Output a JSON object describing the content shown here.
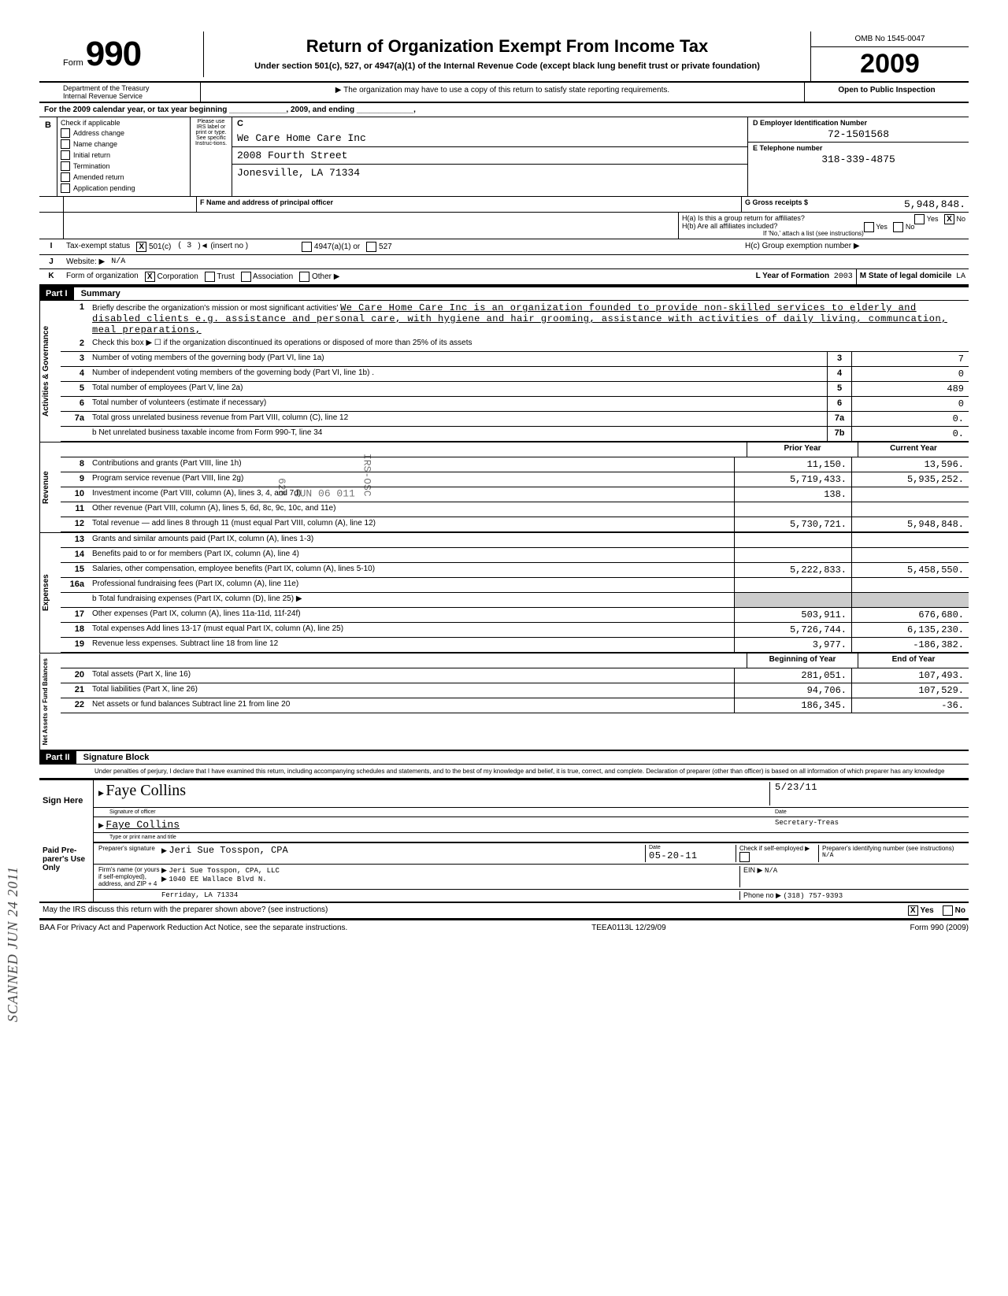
{
  "header": {
    "form_label": "Form",
    "form_number": "990",
    "main_title": "Return of Organization Exempt From Income Tax",
    "sub_title": "Under section 501(c), 527, or 4947(a)(1) of the Internal Revenue Code (except black lung benefit trust or private foundation)",
    "requirement_note": "▶ The organization may have to use a copy of this return to satisfy state reporting requirements.",
    "dept": "Department of the Treasury",
    "irs": "Internal Revenue Service",
    "omb": "OMB No 1545-0047",
    "year": "2009",
    "inspection": "Open to Public Inspection"
  },
  "calendar_row": "For the 2009 calendar year, or tax year beginning _____________, 2009, and ending _____________,",
  "section_b": {
    "label_b": "B",
    "check_if": "Check if applicable",
    "please": "Please use IRS label or print or type. See specific Instruc-tions.",
    "checks": [
      "Address change",
      "Name change",
      "Initial return",
      "Termination",
      "Amended return",
      "Application pending"
    ],
    "label_c": "C",
    "org_name": "We Care Home Care Inc",
    "addr1": "2008 Fourth Street",
    "addr2": "Jonesville, LA 71334",
    "label_d": "D  Employer Identification Number",
    "ein": "72-1501568",
    "label_e": "E  Telephone number",
    "phone": "318-339-4875",
    "label_f": "F  Name and address of principal officer",
    "label_g": "G  Gross receipts $",
    "gross": "5,948,848.",
    "h_a": "H(a) Is this a group return for affiliates?",
    "h_b": "H(b) Are all affiliates included?",
    "h_note": "If 'No,' attach a list (see instructions)",
    "h_c": "H(c) Group exemption number ▶",
    "yes": "Yes",
    "no": "No"
  },
  "row_i": {
    "l": "I",
    "txt": "Tax-exempt status",
    "c501": "501(c)",
    "three": "( 3",
    "insert": ")◄  (insert no )",
    "a4947": "4947(a)(1) or",
    "c527": "527"
  },
  "row_j": {
    "l": "J",
    "txt": "Website: ▶",
    "val": "N/A"
  },
  "row_k": {
    "l": "K",
    "txt": "Form of organization",
    "corp": "Corporation",
    "trust": "Trust",
    "assoc": "Association",
    "other": "Other ▶",
    "yr_l": "L Year of Formation",
    "yr": "2003",
    "st_l": "M State of legal domicile",
    "st": "LA"
  },
  "part1": {
    "hdr": "Part I",
    "title": "Summary"
  },
  "summary": {
    "q1_label": "Briefly describe the organization's mission or most significant activities'",
    "q1_text": "We Care Home Care Inc is an organization founded to provide non-skilled services to elderly and disabled clients e.g. assistance and personal care, with hygiene and hair grooming, assistance with activities of daily living, communcation, meal preparations,",
    "q2": "Check this box ▶  ☐  if the organization discontinued its operations or disposed of more than 25% of its assets",
    "lines_gov": [
      {
        "n": "3",
        "t": "Number of voting members of the governing body (Part VI, line 1a)",
        "b": "3",
        "v": "7"
      },
      {
        "n": "4",
        "t": "Number of independent voting members of the governing body (Part VI, line 1b) .",
        "b": "4",
        "v": "0"
      },
      {
        "n": "5",
        "t": "Total number of employees (Part V, line 2a)",
        "b": "5",
        "v": "489"
      },
      {
        "n": "6",
        "t": "Total number of volunteers (estimate if necessary)",
        "b": "6",
        "v": "0"
      },
      {
        "n": "7a",
        "t": "Total gross unrelated business revenue from Part VIII, column (C), line 12",
        "b": "7a",
        "v": "0."
      },
      {
        "n": "",
        "t": "b Net unrelated business taxable income from Form 990-T, line 34",
        "b": "7b",
        "v": "0."
      }
    ],
    "col_hdr_prior": "Prior Year",
    "col_hdr_curr": "Current Year",
    "revenue": [
      {
        "n": "8",
        "t": "Contributions and grants (Part VIII, line 1h)",
        "p": "11,150.",
        "c": "13,596."
      },
      {
        "n": "9",
        "t": "Program service revenue (Part VIII, line 2g)",
        "p": "5,719,433.",
        "c": "5,935,252."
      },
      {
        "n": "10",
        "t": "Investment income (Part VIII, column (A), lines 3, 4, and 7d)",
        "p": "138.",
        "c": ""
      },
      {
        "n": "11",
        "t": "Other revenue (Part VIII, column (A), lines 5, 6d, 8c, 9c, 10c, and 11e)",
        "p": "",
        "c": ""
      },
      {
        "n": "12",
        "t": "Total revenue — add lines 8 through 11 (must equal Part VIII, column (A), line 12)",
        "p": "5,730,721.",
        "c": "5,948,848."
      }
    ],
    "expenses": [
      {
        "n": "13",
        "t": "Grants and similar amounts paid (Part IX, column (A), lines 1-3)",
        "p": "",
        "c": ""
      },
      {
        "n": "14",
        "t": "Benefits paid to or for members (Part IX, column (A), line 4)",
        "p": "",
        "c": ""
      },
      {
        "n": "15",
        "t": "Salaries, other compensation, employee benefits (Part IX, column (A), lines 5-10)",
        "p": "5,222,833.",
        "c": "5,458,550."
      },
      {
        "n": "16a",
        "t": "Professional fundraising fees (Part IX, column (A), line 11e)",
        "p": "",
        "c": ""
      },
      {
        "n": "",
        "t": "b Total fundraising expenses (Part IX, column (D), line 25) ▶",
        "p": "",
        "c": "",
        "shade": true
      },
      {
        "n": "17",
        "t": "Other expenses (Part IX, column (A), lines 11a-11d, 11f-24f)",
        "p": "503,911.",
        "c": "676,680."
      },
      {
        "n": "18",
        "t": "Total expenses  Add lines 13-17 (must equal Part IX, column (A), line 25)",
        "p": "5,726,744.",
        "c": "6,135,230."
      },
      {
        "n": "19",
        "t": "Revenue less expenses. Subtract line 18 from line 12",
        "p": "3,977.",
        "c": "-186,382."
      }
    ],
    "col_hdr_begin": "Beginning of Year",
    "col_hdr_end": "End of Year",
    "netassets": [
      {
        "n": "20",
        "t": "Total assets (Part X, line 16)",
        "p": "281,051.",
        "c": "107,493."
      },
      {
        "n": "21",
        "t": "Total liabilities (Part X, line 26)",
        "p": "94,706.",
        "c": "107,529."
      },
      {
        "n": "22",
        "t": "Net assets or fund balances  Subtract line 21 from line 20",
        "p": "186,345.",
        "c": "-36."
      }
    ],
    "side_gov": "Activities & Governance",
    "side_rev": "Revenue",
    "side_exp": "Expenses",
    "side_net": "Net Assets or Fund Balances"
  },
  "stamp": {
    "l1": "626",
    "l2": "JUN 06  011",
    "l3": "IRS-OSC"
  },
  "part2": {
    "hdr": "Part II",
    "title": "Signature Block"
  },
  "sig": {
    "perjury": "Under penalties of perjury, I declare that I have examined this return, including accompanying schedules and statements, and to the best of my knowledge and belief, it is true, correct, and complete. Declaration of preparer (other than officer) is based on all information of which preparer has any knowledge",
    "sign_here": "Sign Here",
    "sig_of_officer": "Signature of officer",
    "date": "Date",
    "date_val": "5/23/11",
    "name_title": "Faye Collins",
    "title_val": "Secretary-Treas",
    "type_print": "Type or print name and title",
    "paid": "Paid Pre-parer's Use Only",
    "prep_sig": "Preparer's signature",
    "prep_name": "Jeri Sue Tosspon, CPA",
    "prep_date": "05-20-11",
    "check_self": "Check if self-employed",
    "prep_id": "Preparer's identifying number (see instructions)",
    "prep_id_val": "N/A",
    "firm": "Firm's name (or yours if self-employed), address, and ZIP + 4",
    "firm_name": "Jeri Sue Tosspon, CPA, LLC",
    "firm_addr1": "1040 EE Wallace Blvd N.",
    "firm_addr2": "Ferriday, LA 71334",
    "ein_l": "EIN  ▶",
    "ein_v": "N/A",
    "phone_l": "Phone no  ▶",
    "phone_v": "(318) 757-9393",
    "discuss": "May the IRS discuss this return with the preparer shown above? (see instructions)",
    "yes": "Yes",
    "no": "No"
  },
  "footer": {
    "left": "BAA  For Privacy Act and Paperwork Reduction Act Notice, see the separate instructions.",
    "mid": "TEEA0113L  12/29/09",
    "right": "Form 990 (2009)"
  },
  "scan_stamp": "SCANNED JUN 24 2011"
}
